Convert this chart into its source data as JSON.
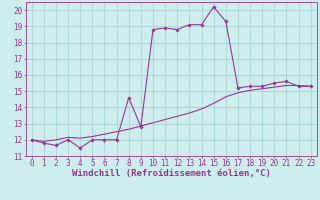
{
  "xlabel": "Windchill (Refroidissement éolien,°C)",
  "ylabel": "",
  "xlim": [
    -0.5,
    23.5
  ],
  "ylim": [
    11,
    20.5
  ],
  "yticks": [
    11,
    12,
    13,
    14,
    15,
    16,
    17,
    18,
    19,
    20
  ],
  "xticks": [
    0,
    1,
    2,
    3,
    4,
    5,
    6,
    7,
    8,
    9,
    10,
    11,
    12,
    13,
    14,
    15,
    16,
    17,
    18,
    19,
    20,
    21,
    22,
    23
  ],
  "bg_color": "#ceeeed",
  "line_color": "#993399",
  "line1_x": [
    0,
    1,
    2,
    3,
    4,
    5,
    6,
    7,
    8,
    9,
    10,
    11,
    12,
    13,
    14,
    15,
    16,
    17,
    18,
    19,
    20,
    21,
    22,
    23
  ],
  "line1_y": [
    12.0,
    11.8,
    11.65,
    12.0,
    11.5,
    12.0,
    12.0,
    12.0,
    14.6,
    12.8,
    18.8,
    18.9,
    18.8,
    19.1,
    19.1,
    20.2,
    19.3,
    15.2,
    15.3,
    15.3,
    15.5,
    15.6,
    15.3,
    15.3
  ],
  "line2_x": [
    0,
    1,
    2,
    3,
    4,
    5,
    6,
    7,
    8,
    9,
    10,
    11,
    12,
    13,
    14,
    15,
    16,
    17,
    18,
    19,
    20,
    21,
    22,
    23
  ],
  "line2_y": [
    12.0,
    11.9,
    12.0,
    12.15,
    12.1,
    12.2,
    12.35,
    12.5,
    12.65,
    12.85,
    13.05,
    13.25,
    13.45,
    13.65,
    13.9,
    14.25,
    14.65,
    14.9,
    15.05,
    15.15,
    15.25,
    15.35,
    15.35,
    15.3
  ],
  "grid_color": "#aad4d4",
  "font_color": "#993399",
  "tick_fontsize": 5.5,
  "xlabel_fontsize": 6.5
}
